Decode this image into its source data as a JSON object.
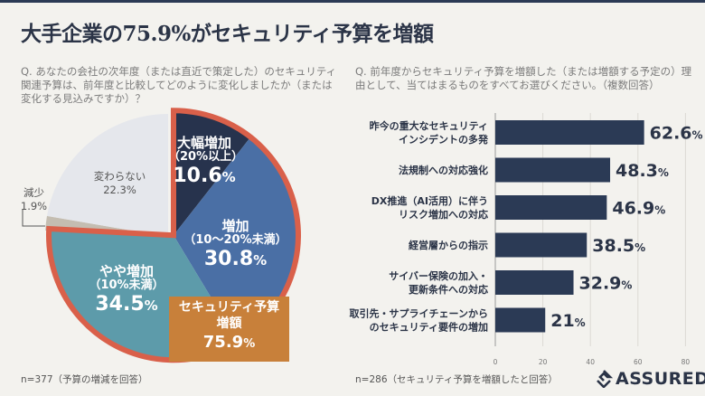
{
  "title": "大手企業の75.9%がセキュリティ予算を増額",
  "left": {
    "question": "Q. あなたの会社の次年度（または直近で策定した）のセキュリティ関連予算は、前年度と比較してどのように変化しましたか（または変化する見込みですか）？",
    "note": "n=377（予算の増減を回答）",
    "callout": {
      "line1": "セキュリティ予算",
      "line2": "増額",
      "value": "75.9",
      "unit": "%"
    }
  },
  "right": {
    "question": "Q. 前年度からセキュリティ予算を増額した（または増額する予定の）理由として、当てはまるものをすべてお選びください。（複数回答）",
    "note": "n=286（セキュリティ予算を増額したと回答）"
  },
  "logo": "ASSURED",
  "chart_data": [
    {
      "type": "pie",
      "start": "top, clockwise",
      "slices": [
        {
          "label": "大幅増加",
          "sub": "（20%以上）",
          "value": 10.6,
          "color": "#27334d",
          "highlight": true
        },
        {
          "label": "増加",
          "sub": "（10〜20%未満）",
          "value": 30.8,
          "color": "#4a6fa5",
          "highlight": true
        },
        {
          "label": "やや増加",
          "sub": "（10%未満）",
          "value": 34.5,
          "color": "#5d9baa",
          "highlight": true
        },
        {
          "label": "減少",
          "sub": "",
          "value": 1.9,
          "color": "#c4bdb1",
          "highlight": false
        },
        {
          "label": "変わらない",
          "sub": "",
          "value": 22.3,
          "color": "#e5e7ec",
          "highlight": false
        }
      ],
      "highlight_color": "#d9604a"
    },
    {
      "type": "bar",
      "orientation": "horizontal",
      "categories": [
        [
          "昨今の重大なセキュリティ",
          "インシデントの多発"
        ],
        [
          "法規制への対応強化"
        ],
        [
          "DX推進（AI活用）に伴う",
          "リスク増加への対応"
        ],
        [
          "経営層からの指示"
        ],
        [
          "サイバー保険の加入・",
          "更新条件への対応"
        ],
        [
          "取引先・サプライチェーンから",
          "のセキュリティ要件の増加"
        ]
      ],
      "values": [
        62.6,
        48.3,
        46.9,
        38.5,
        32.9,
        21
      ],
      "unit": "%",
      "xticks": [
        0,
        20,
        40,
        60,
        80
      ],
      "xlim": [
        0,
        88
      ],
      "grid": true,
      "bar_color": "#2b3a55"
    }
  ]
}
